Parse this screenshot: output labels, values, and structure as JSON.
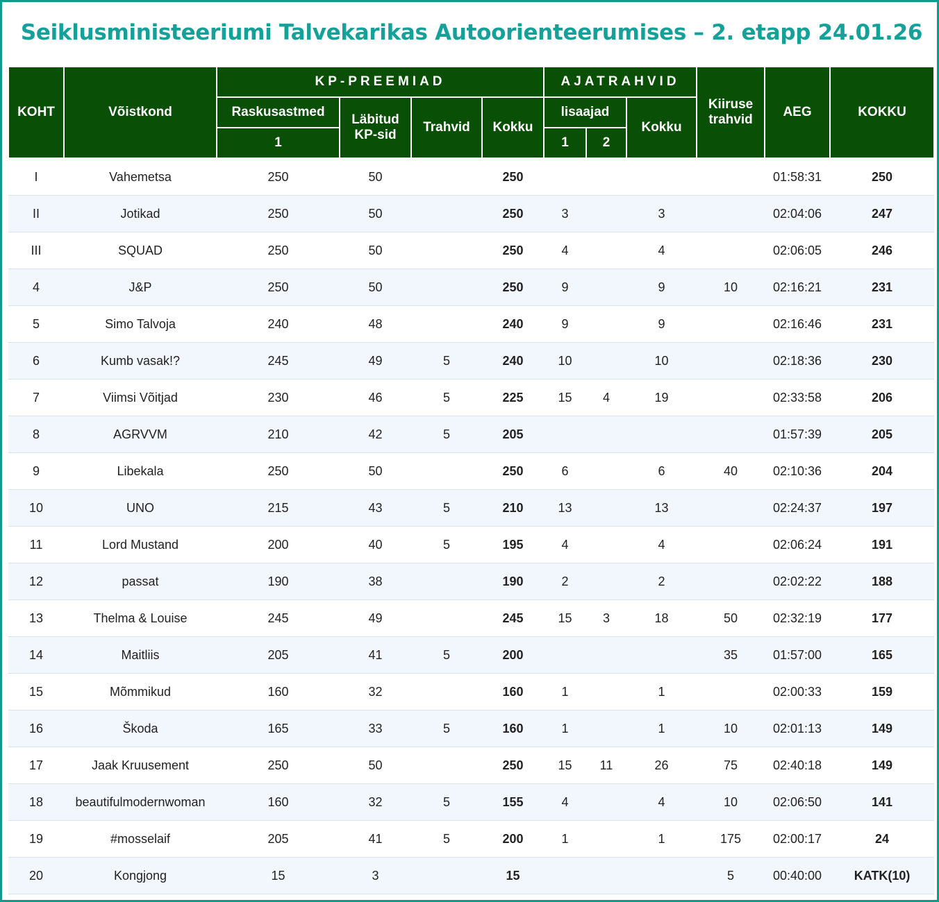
{
  "title": "Seiklusministeeriumi Talvekarikas Autoorienteerumises – 2. etapp 24.01.26",
  "headers": {
    "koht": "KOHT",
    "voistkond": "Võistkond",
    "kp_preemiad": "KP-PREEMIAD",
    "raskusastmed": "Raskusastmed",
    "raskusastmed_sub": "1",
    "labitud": "Läbitud KP-sid",
    "trahvid": "Trahvid",
    "kokku_kp": "Kokku",
    "ajatrahvid": "AJATRAHVID",
    "lisaajad": "lisaajad",
    "lisaaeg_1": "1",
    "lisaaeg_2": "2",
    "kokku_aeg": "Kokku",
    "kiiruse_trahvid": "Kiiruse trahvid",
    "aeg": "AEG",
    "kokku": "KOKKU"
  },
  "rows": [
    {
      "place": "I",
      "team": "Vahemetsa",
      "raskus": "250",
      "labitud": "50",
      "trahvid": "",
      "kp_kokku": "250",
      "lisa1": "",
      "lisa2": "",
      "aeg_kokku": "",
      "kiirus": "",
      "aeg": "01:58:31",
      "kokku": "250"
    },
    {
      "place": "II",
      "team": "Jotikad",
      "raskus": "250",
      "labitud": "50",
      "trahvid": "",
      "kp_kokku": "250",
      "lisa1": "3",
      "lisa2": "",
      "aeg_kokku": "3",
      "kiirus": "",
      "aeg": "02:04:06",
      "kokku": "247"
    },
    {
      "place": "III",
      "team": "SQUAD",
      "raskus": "250",
      "labitud": "50",
      "trahvid": "",
      "kp_kokku": "250",
      "lisa1": "4",
      "lisa2": "",
      "aeg_kokku": "4",
      "kiirus": "",
      "aeg": "02:06:05",
      "kokku": "246"
    },
    {
      "place": "4",
      "team": "J&P",
      "raskus": "250",
      "labitud": "50",
      "trahvid": "",
      "kp_kokku": "250",
      "lisa1": "9",
      "lisa2": "",
      "aeg_kokku": "9",
      "kiirus": "10",
      "aeg": "02:16:21",
      "kokku": "231"
    },
    {
      "place": "5",
      "team": "Simo Talvoja",
      "raskus": "240",
      "labitud": "48",
      "trahvid": "",
      "kp_kokku": "240",
      "lisa1": "9",
      "lisa2": "",
      "aeg_kokku": "9",
      "kiirus": "",
      "aeg": "02:16:46",
      "kokku": "231"
    },
    {
      "place": "6",
      "team": "Kumb vasak!?",
      "raskus": "245",
      "labitud": "49",
      "trahvid": "5",
      "kp_kokku": "240",
      "lisa1": "10",
      "lisa2": "",
      "aeg_kokku": "10",
      "kiirus": "",
      "aeg": "02:18:36",
      "kokku": "230"
    },
    {
      "place": "7",
      "team": "Viimsi Võitjad",
      "raskus": "230",
      "labitud": "46",
      "trahvid": "5",
      "kp_kokku": "225",
      "lisa1": "15",
      "lisa2": "4",
      "aeg_kokku": "19",
      "kiirus": "",
      "aeg": "02:33:58",
      "kokku": "206"
    },
    {
      "place": "8",
      "team": "AGRVVM",
      "raskus": "210",
      "labitud": "42",
      "trahvid": "5",
      "kp_kokku": "205",
      "lisa1": "",
      "lisa2": "",
      "aeg_kokku": "",
      "kiirus": "",
      "aeg": "01:57:39",
      "kokku": "205"
    },
    {
      "place": "9",
      "team": "Libekala",
      "raskus": "250",
      "labitud": "50",
      "trahvid": "",
      "kp_kokku": "250",
      "lisa1": "6",
      "lisa2": "",
      "aeg_kokku": "6",
      "kiirus": "40",
      "aeg": "02:10:36",
      "kokku": "204"
    },
    {
      "place": "10",
      "team": "UNO",
      "raskus": "215",
      "labitud": "43",
      "trahvid": "5",
      "kp_kokku": "210",
      "lisa1": "13",
      "lisa2": "",
      "aeg_kokku": "13",
      "kiirus": "",
      "aeg": "02:24:37",
      "kokku": "197"
    },
    {
      "place": "11",
      "team": "Lord Mustand",
      "raskus": "200",
      "labitud": "40",
      "trahvid": "5",
      "kp_kokku": "195",
      "lisa1": "4",
      "lisa2": "",
      "aeg_kokku": "4",
      "kiirus": "",
      "aeg": "02:06:24",
      "kokku": "191"
    },
    {
      "place": "12",
      "team": "passat",
      "raskus": "190",
      "labitud": "38",
      "trahvid": "",
      "kp_kokku": "190",
      "lisa1": "2",
      "lisa2": "",
      "aeg_kokku": "2",
      "kiirus": "",
      "aeg": "02:02:22",
      "kokku": "188"
    },
    {
      "place": "13",
      "team": "Thelma & Louise",
      "raskus": "245",
      "labitud": "49",
      "trahvid": "",
      "kp_kokku": "245",
      "lisa1": "15",
      "lisa2": "3",
      "aeg_kokku": "18",
      "kiirus": "50",
      "aeg": "02:32:19",
      "kokku": "177"
    },
    {
      "place": "14",
      "team": "Maitliis",
      "raskus": "205",
      "labitud": "41",
      "trahvid": "5",
      "kp_kokku": "200",
      "lisa1": "",
      "lisa2": "",
      "aeg_kokku": "",
      "kiirus": "35",
      "aeg": "01:57:00",
      "kokku": "165"
    },
    {
      "place": "15",
      "team": "Mõmmikud",
      "raskus": "160",
      "labitud": "32",
      "trahvid": "",
      "kp_kokku": "160",
      "lisa1": "1",
      "lisa2": "",
      "aeg_kokku": "1",
      "kiirus": "",
      "aeg": "02:00:33",
      "kokku": "159"
    },
    {
      "place": "16",
      "team": "Škoda",
      "raskus": "165",
      "labitud": "33",
      "trahvid": "5",
      "kp_kokku": "160",
      "lisa1": "1",
      "lisa2": "",
      "aeg_kokku": "1",
      "kiirus": "10",
      "aeg": "02:01:13",
      "kokku": "149"
    },
    {
      "place": "17",
      "team": "Jaak Kruusement",
      "raskus": "250",
      "labitud": "50",
      "trahvid": "",
      "kp_kokku": "250",
      "lisa1": "15",
      "lisa2": "11",
      "aeg_kokku": "26",
      "kiirus": "75",
      "aeg": "02:40:18",
      "kokku": "149"
    },
    {
      "place": "18",
      "team": "beautifulmodernwoman",
      "raskus": "160",
      "labitud": "32",
      "trahvid": "5",
      "kp_kokku": "155",
      "lisa1": "4",
      "lisa2": "",
      "aeg_kokku": "4",
      "kiirus": "10",
      "aeg": "02:06:50",
      "kokku": "141"
    },
    {
      "place": "19",
      "team": "#mosselaif",
      "raskus": "205",
      "labitud": "41",
      "trahvid": "5",
      "kp_kokku": "200",
      "lisa1": "1",
      "lisa2": "",
      "aeg_kokku": "1",
      "kiirus": "175",
      "aeg": "02:00:17",
      "kokku": "24"
    },
    {
      "place": "20",
      "team": "Kongjong",
      "raskus": "15",
      "labitud": "3",
      "trahvid": "",
      "kp_kokku": "15",
      "lisa1": "",
      "lisa2": "",
      "aeg_kokku": "",
      "kiirus": "5",
      "aeg": "00:40:00",
      "kokku": "KATK(10)"
    }
  ]
}
